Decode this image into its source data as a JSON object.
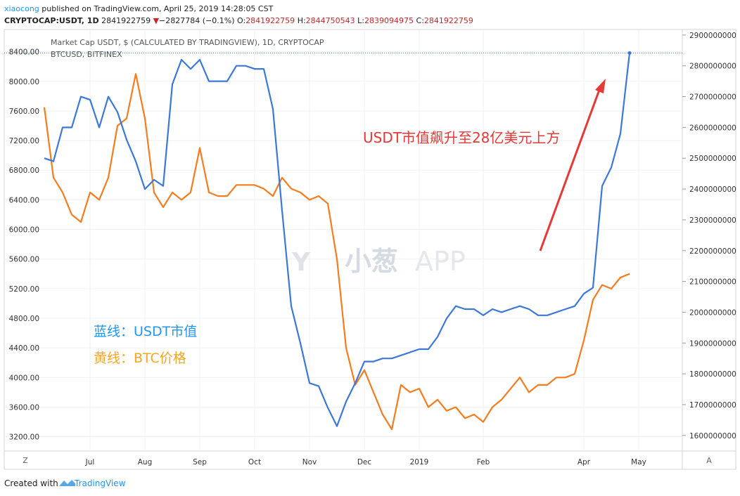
{
  "header": {
    "author": "xiaocong",
    "published": "published on TradingView.com, April 25, 2019 14:28:05 CST",
    "symbol": "CRYPTOCAP:USDT, 1D",
    "last": "2841922759",
    "direction": "▼",
    "change": "−2827784 (−0.1%)",
    "ohlc": [
      {
        "label": "O:",
        "value": "2841922759"
      },
      {
        "label": "H:",
        "value": "2844750543"
      },
      {
        "label": "L:",
        "value": "2839094975"
      },
      {
        "label": "C:",
        "value": "2841922759"
      }
    ]
  },
  "chart_data": {
    "type": "line",
    "categories": [
      null,
      null,
      null,
      null,
      null,
      "Jul",
      null,
      null,
      null,
      null,
      null,
      "Aug",
      null,
      null,
      null,
      null,
      null,
      "Sep",
      null,
      null,
      null,
      null,
      null,
      "Oct",
      null,
      null,
      null,
      null,
      null,
      "Nov",
      null,
      null,
      null,
      null,
      null,
      "Dec",
      null,
      null,
      null,
      null,
      null,
      "2019",
      null,
      null,
      null,
      null,
      null,
      null,
      "Feb",
      null,
      null,
      null,
      null,
      null,
      null,
      null,
      null,
      null,
      null,
      "Apr",
      null,
      null,
      null,
      null,
      null,
      "May"
    ],
    "series": [
      {
        "name": "BTCUSD, BITFINEX",
        "color": "#f57c1f",
        "axis": "y",
        "values": [
          7650,
          6700,
          6500,
          6200,
          6100,
          6500,
          6400,
          6700,
          7400,
          7500,
          8100,
          7500,
          6500,
          6300,
          6500,
          6400,
          6500,
          7100,
          6500,
          6450,
          6450,
          6600,
          6600,
          6600,
          6550,
          6450,
          6700,
          6550,
          6500,
          6400,
          6450,
          6350,
          5600,
          4400,
          3900,
          4100,
          3800,
          3500,
          3300,
          3900,
          3800,
          3850,
          3600,
          3700,
          3550,
          3600,
          3450,
          3500,
          3400,
          3600,
          3700,
          3850,
          4000,
          3800,
          3900,
          3900,
          4000,
          4000,
          4050,
          4500,
          5050,
          5250,
          5200,
          5350,
          5400,
          null
        ]
      },
      {
        "name": "Market Cap USDT, $ (CALCULATED BY TRADINGVIEW), 1D, CRYPTOCAP",
        "color": "#3c78d8",
        "axis": "y2",
        "values": [
          2500000000,
          2490000000,
          2600000000,
          2600000000,
          2700000000,
          2690000000,
          2600000000,
          2700000000,
          2650000000,
          2560000000,
          2490000000,
          2400000000,
          2430000000,
          2410000000,
          2740000000,
          2820000000,
          2790000000,
          2820000000,
          2750000000,
          2750000000,
          2750000000,
          2800000000,
          2800000000,
          2790000000,
          2790000000,
          2660000000,
          2330000000,
          2020000000,
          1900000000,
          1770000000,
          1760000000,
          1690000000,
          1630000000,
          1710000000,
          1770000000,
          1840000000,
          1840000000,
          1850000000,
          1850000000,
          1860000000,
          1870000000,
          1880000000,
          1880000000,
          1920000000,
          1980000000,
          2020000000,
          2010000000,
          2010000000,
          1990000000,
          2010000000,
          2000000000,
          2010000000,
          2020000000,
          2010000000,
          1990000000,
          1990000000,
          2000000000,
          2010000000,
          2020000000,
          2060000000,
          2080000000,
          2410000000,
          2470000000,
          2580000000,
          2841922759,
          null
        ]
      }
    ],
    "ylim": [
      2760,
      8700
    ],
    "yticks": [
      {
        "value": 3200,
        "label": "3200.00"
      },
      {
        "value": 3600,
        "label": "3600.00"
      },
      {
        "value": 4000,
        "label": "4000.00"
      },
      {
        "value": 4400,
        "label": "4400.00"
      },
      {
        "value": 4800,
        "label": "4800.00"
      },
      {
        "value": 5200,
        "label": "5200.00"
      },
      {
        "value": 5600,
        "label": "5600.00"
      },
      {
        "value": 6000,
        "label": "6000.00"
      },
      {
        "value": 6400,
        "label": "6400.00"
      },
      {
        "value": 6800,
        "label": "6800.00"
      },
      {
        "value": 7200,
        "label": "7200.00"
      },
      {
        "value": 7600,
        "label": "7600.00"
      },
      {
        "value": 8000,
        "label": "8000.00"
      },
      {
        "value": 8400,
        "label": "8400.00"
      }
    ],
    "y2lim": [
      1490000000,
      2918000000
    ],
    "y2ticks": [
      1600000000,
      1700000000,
      1800000000,
      1900000000,
      2000000000,
      2100000000,
      2200000000,
      2300000000,
      2400000000,
      2500000000,
      2600000000,
      2700000000,
      2800000000,
      2900000000
    ],
    "grid": true,
    "annotations": [
      "USDT市值飙升至28亿美元上方",
      "蓝线：USDT市值",
      "黄线：BTC价格"
    ],
    "watermark": [
      "小葱",
      "APP"
    ],
    "scale_buttons": [
      "Z",
      "A"
    ]
  },
  "footer": {
    "created": "Created with",
    "brand": "TradingView"
  }
}
